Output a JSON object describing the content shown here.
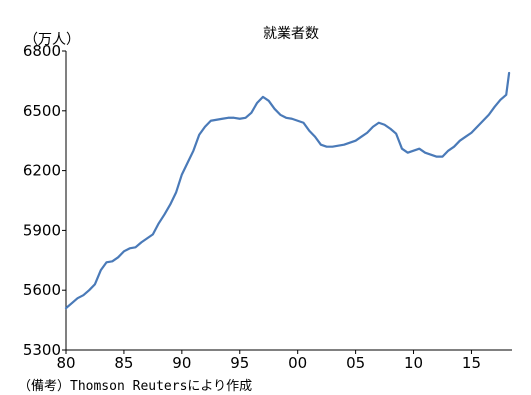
{
  "chart_data": {
    "type": "line",
    "title": "就業者数",
    "unit_label": "（万人）",
    "source_note": "（備考）Thomson Reutersにより作成",
    "ylim": [
      5300,
      6800
    ],
    "y_ticks": [
      5300,
      5600,
      5900,
      6200,
      6500,
      6800
    ],
    "y_tick_labels": [
      "5300",
      "5600",
      "5900",
      "6200",
      "6500",
      "6800"
    ],
    "xlim": [
      1980,
      2018.5
    ],
    "x_ticks": [
      1980,
      1985,
      1990,
      1995,
      2000,
      2005,
      2010,
      2015
    ],
    "x_tick_labels": [
      "80",
      "85",
      "90",
      "95",
      "00",
      "05",
      "10",
      "15"
    ],
    "legend": "none",
    "grid": false,
    "colors": {
      "line": "#4a7ab8",
      "axis": "#000000"
    },
    "series": [
      {
        "x": [
          1980.0,
          1980.5,
          1981.0,
          1981.5,
          1982.0,
          1982.5,
          1983.0,
          1983.5,
          1984.0,
          1984.5,
          1985.0,
          1985.5,
          1986.0,
          1986.5,
          1987.0,
          1987.5,
          1988.0,
          1988.5,
          1989.0,
          1989.5,
          1990.0,
          1990.5,
          1991.0,
          1991.5,
          1992.0,
          1992.5,
          1993.0,
          1993.5,
          1994.0,
          1994.5,
          1995.0,
          1995.5,
          1996.0,
          1996.5,
          1997.0,
          1997.5,
          1998.0,
          1998.5,
          1999.0,
          1999.5,
          2000.0,
          2000.5,
          2001.0,
          2001.5,
          2002.0,
          2002.5,
          2003.0,
          2003.5,
          2004.0,
          2004.5,
          2005.0,
          2005.5,
          2006.0,
          2006.5,
          2007.0,
          2007.5,
          2008.0,
          2008.5,
          2009.0,
          2009.5,
          2010.0,
          2010.5,
          2011.0,
          2011.5,
          2012.0,
          2012.5,
          2013.0,
          2013.5,
          2014.0,
          2014.5,
          2015.0,
          2015.5,
          2016.0,
          2016.5,
          2017.0,
          2017.5,
          2018.0,
          2018.25
        ],
        "values": [
          5510,
          5535,
          5560,
          5575,
          5600,
          5630,
          5700,
          5740,
          5745,
          5765,
          5795,
          5810,
          5815,
          5840,
          5860,
          5880,
          5935,
          5980,
          6030,
          6090,
          6180,
          6240,
          6300,
          6380,
          6420,
          6450,
          6455,
          6460,
          6465,
          6465,
          6460,
          6465,
          6490,
          6540,
          6570,
          6550,
          6510,
          6480,
          6465,
          6460,
          6450,
          6440,
          6400,
          6370,
          6330,
          6320,
          6320,
          6325,
          6330,
          6340,
          6350,
          6370,
          6390,
          6420,
          6440,
          6430,
          6410,
          6385,
          6310,
          6290,
          6300,
          6310,
          6290,
          6280,
          6270,
          6270,
          6300,
          6320,
          6350,
          6370,
          6390,
          6420,
          6450,
          6480,
          6520,
          6555,
          6580,
          6690
        ]
      }
    ]
  }
}
